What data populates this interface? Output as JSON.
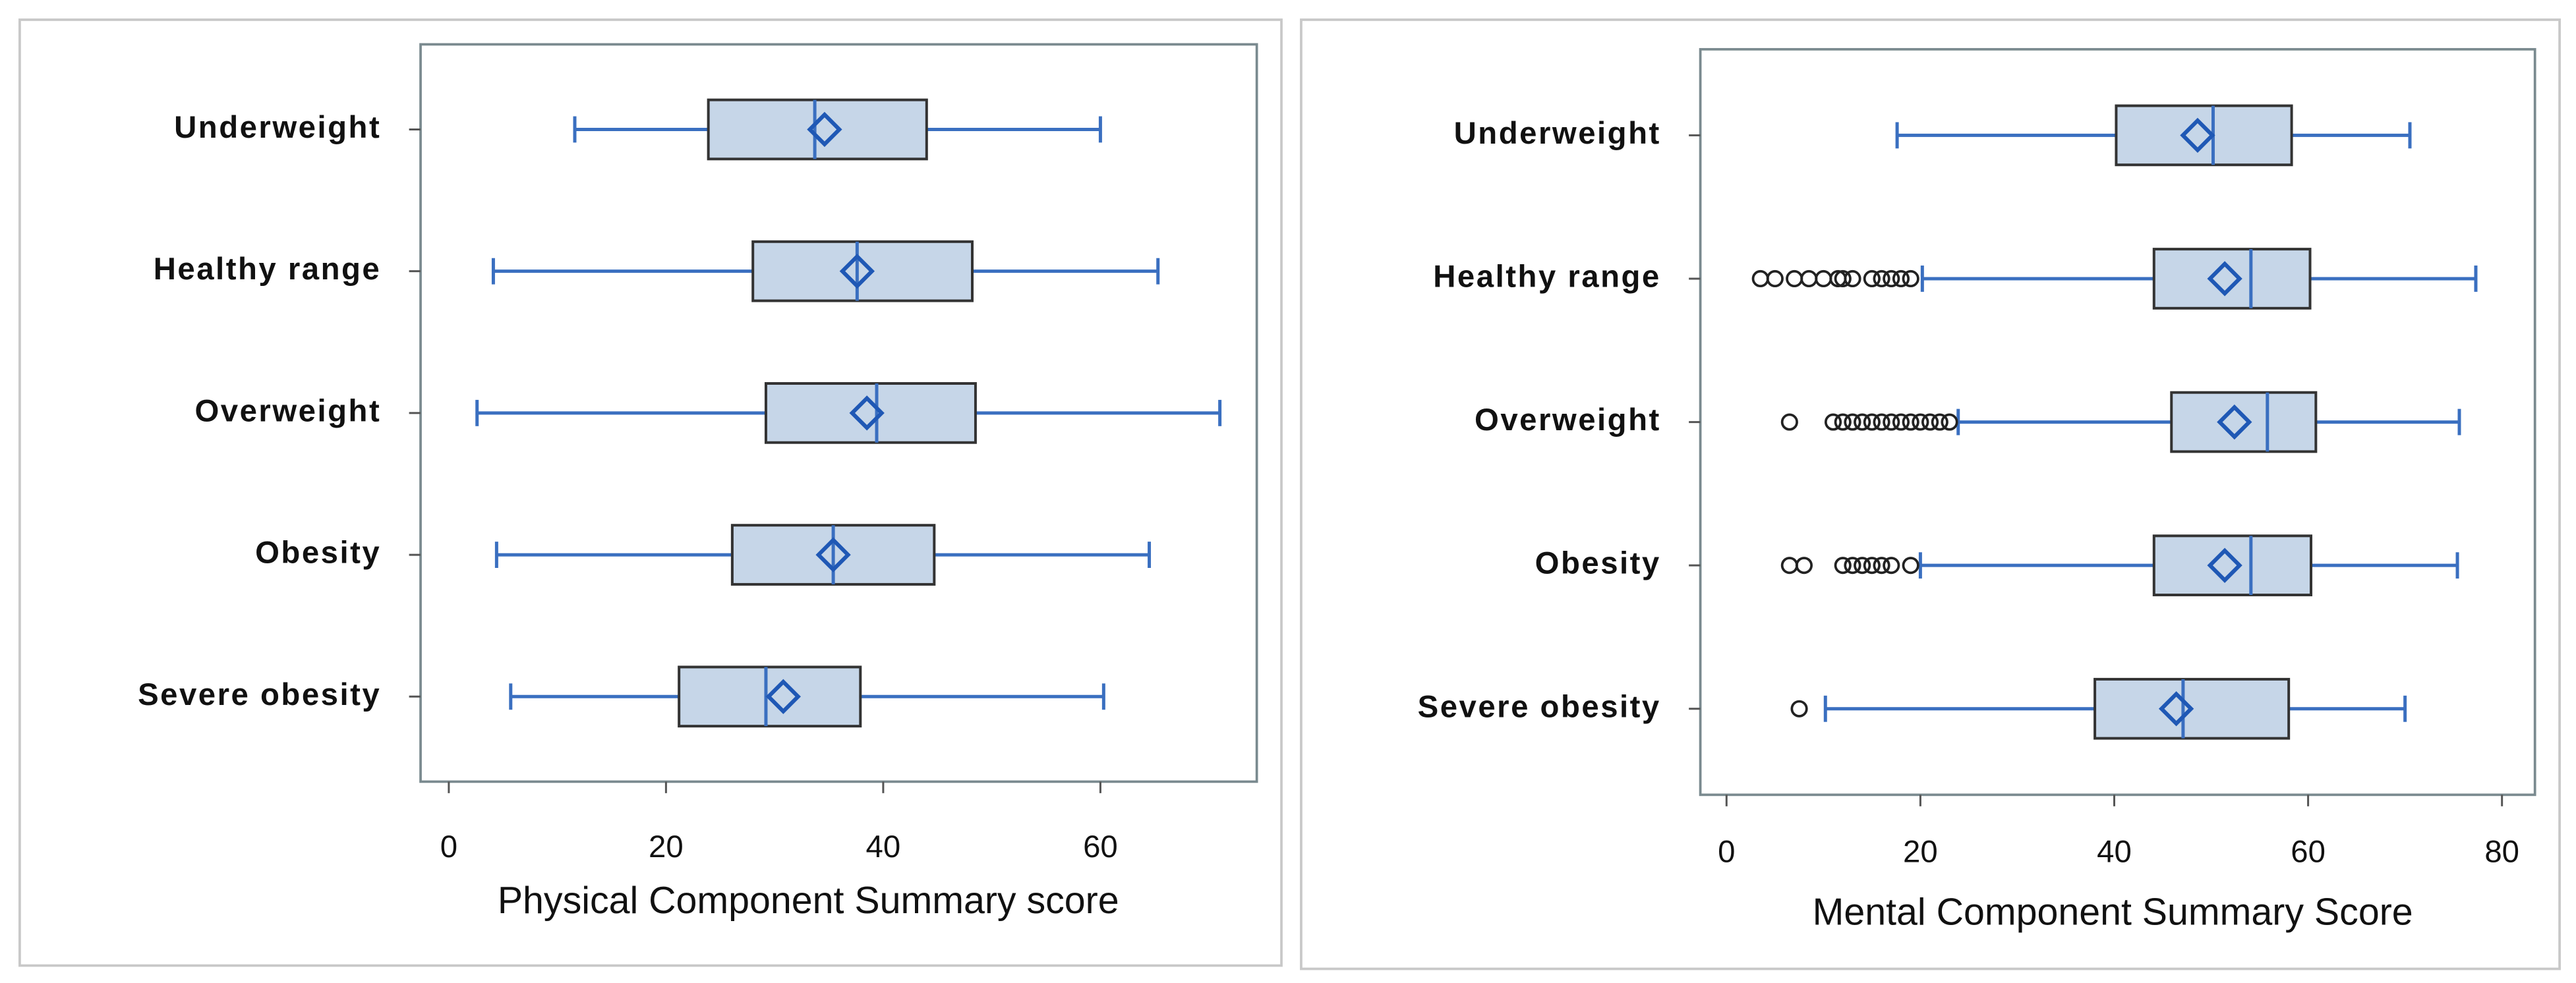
{
  "chart_data": [
    {
      "type": "boxplot",
      "orientation": "horizontal",
      "xlabel": "Physical Component Summary score",
      "categories": [
        "Underweight",
        "Healthy range",
        "Overweight",
        "Obesity",
        "Severe obesity"
      ],
      "boxes": [
        {
          "whisker_low": 11.6,
          "q1": 23.9,
          "median": 33.7,
          "q3": 44.0,
          "whisker_high": 60.0,
          "mean": 34.6,
          "outliers": []
        },
        {
          "whisker_low": 4.1,
          "q1": 28.0,
          "median": 37.6,
          "q3": 48.2,
          "whisker_high": 65.3,
          "mean": 37.6,
          "outliers": []
        },
        {
          "whisker_low": 2.6,
          "q1": 29.2,
          "median": 39.4,
          "q3": 48.5,
          "whisker_high": 71.0,
          "mean": 38.5,
          "outliers": []
        },
        {
          "whisker_low": 4.4,
          "q1": 26.1,
          "median": 35.4,
          "q3": 44.7,
          "whisker_high": 64.5,
          "mean": 35.4,
          "outliers": []
        },
        {
          "whisker_low": 5.7,
          "q1": 21.2,
          "median": 29.2,
          "q3": 37.9,
          "whisker_high": 60.3,
          "mean": 30.8,
          "outliers": []
        }
      ],
      "xlim": [
        -2.6,
        74.4
      ],
      "xticks": [
        0,
        20,
        40,
        60
      ],
      "box_color": "#c6d6e8",
      "whisker_color": "#3a6fc0",
      "mean_color": "#1f58b5",
      "outlier_color": "#222222"
    },
    {
      "type": "boxplot",
      "orientation": "horizontal",
      "xlabel": "Mental Component Summary Score",
      "categories": [
        "Underweight",
        "Healthy range",
        "Overweight",
        "Obesity",
        "Severe obesity"
      ],
      "boxes": [
        {
          "whisker_low": 17.6,
          "q1": 40.2,
          "median": 50.2,
          "q3": 58.3,
          "whisker_high": 70.5,
          "mean": 48.6,
          "outliers": []
        },
        {
          "whisker_low": 20.2,
          "q1": 44.1,
          "median": 54.1,
          "q3": 60.2,
          "whisker_high": 77.3,
          "mean": 51.4,
          "outliers": [
            3.5,
            5,
            7,
            8.5,
            10,
            11.5,
            12,
            13,
            15,
            16,
            17,
            18,
            19
          ]
        },
        {
          "whisker_low": 23.9,
          "q1": 45.9,
          "median": 55.8,
          "q3": 60.8,
          "whisker_high": 75.6,
          "mean": 52.4,
          "outliers": [
            6.5,
            11,
            12,
            13,
            14,
            15,
            16,
            17,
            18,
            19,
            20,
            21,
            22,
            23
          ]
        },
        {
          "whisker_low": 20.0,
          "q1": 44.1,
          "median": 54.1,
          "q3": 60.3,
          "whisker_high": 75.4,
          "mean": 51.4,
          "outliers": [
            6.5,
            8,
            12,
            13,
            14,
            15,
            16,
            17,
            19
          ]
        },
        {
          "whisker_low": 10.2,
          "q1": 38.0,
          "median": 47.1,
          "q3": 58.0,
          "whisker_high": 70.0,
          "mean": 46.4,
          "outliers": [
            7.5
          ]
        }
      ],
      "xlim": [
        -2.7,
        83.4
      ],
      "xticks": [
        0,
        20,
        40,
        60,
        80
      ],
      "box_color": "#c6d6e8",
      "whisker_color": "#3a6fc0",
      "mean_color": "#1f58b5",
      "outlier_color": "#222222"
    }
  ]
}
